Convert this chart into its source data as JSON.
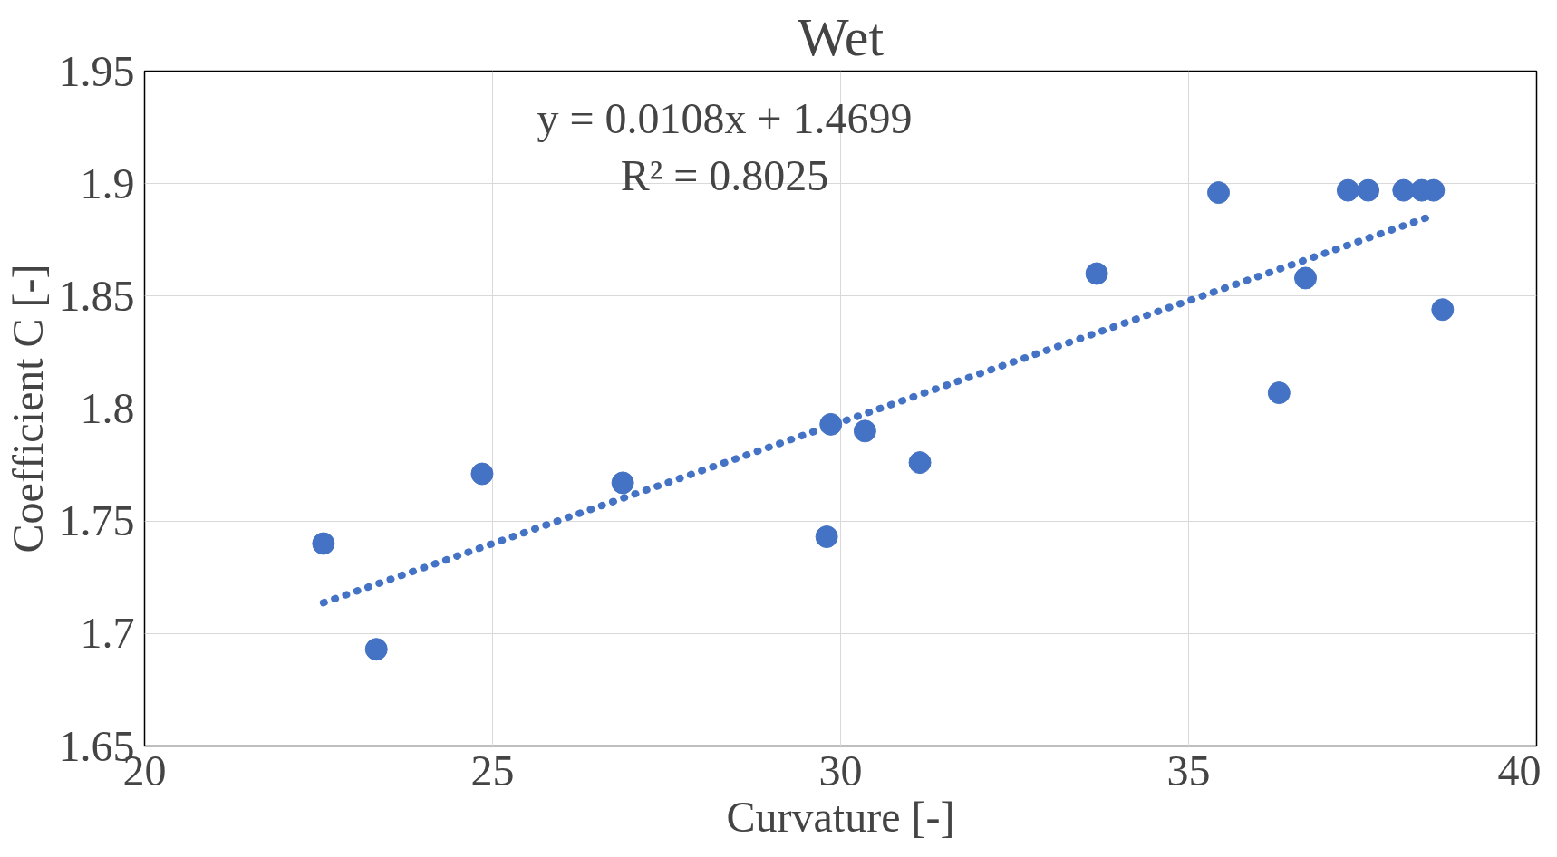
{
  "chart_data": {
    "type": "scatter",
    "title": "Wet",
    "xlabel": "Curvature [-]",
    "ylabel": "Coefficient C [-]",
    "annotations": [
      "y = 0.0108x + 1.4699\nR² = 0.8025"
    ],
    "xlim": [
      20,
      40
    ],
    "ylim": [
      1.65,
      1.95
    ],
    "xticks": [
      20,
      25,
      30,
      35,
      40
    ],
    "yticks": [
      1.65,
      1.7,
      1.75,
      1.8,
      1.85,
      1.9,
      1.95
    ],
    "grid": true,
    "series": [
      {
        "marker": "circle",
        "color": "#4472c4",
        "x": [
          22.57,
          23.33,
          24.85,
          26.87,
          29.8,
          29.86,
          30.35,
          31.14,
          33.68,
          35.43,
          36.3,
          36.68,
          37.29,
          37.58,
          38.09,
          38.35,
          38.52,
          38.65
        ],
        "values": [
          1.74,
          1.693,
          1.771,
          1.767,
          1.743,
          1.793,
          1.79,
          1.776,
          1.86,
          1.896,
          1.807,
          1.858,
          1.897,
          1.897,
          1.897,
          1.897,
          1.897,
          1.844
        ]
      },
      {
        "type": "line",
        "color": "#4472c4",
        "line_style": "dotted",
        "x": [
          22.57,
          38.5
        ],
        "values": [
          1.7137,
          1.8857
        ]
      }
    ]
  }
}
